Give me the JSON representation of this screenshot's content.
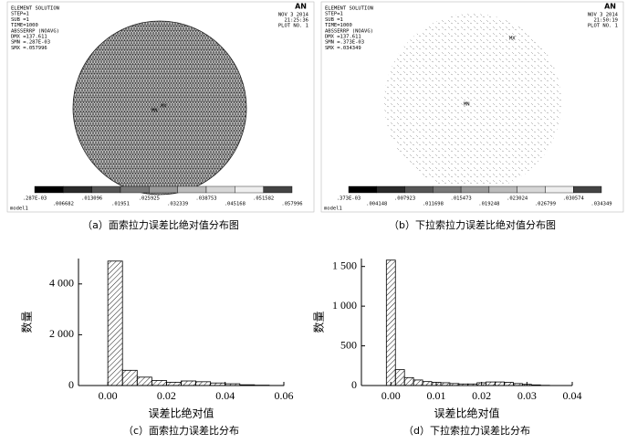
{
  "panels": [
    {
      "header": [
        "ELEMENT SOLUTION",
        "STEP=1",
        "SUB =1",
        "TIME=1000",
        "ABSSERRP (NOAVG)",
        "DMX =137.611",
        "SMN =.287E-03",
        "SMX =.057996"
      ],
      "logo": "AN",
      "stamp": [
        "NOV  3 2014",
        "21:25:36",
        "PLOT NO.   1"
      ],
      "markers": [
        "MN",
        "MX"
      ],
      "legend_labels": [
        ".287E-03",
        ".006682",
        ".013096",
        ".01951",
        ".025925",
        ".032339",
        ".038753",
        ".045168",
        ".051582",
        ".057996"
      ],
      "footer": "model1",
      "caption": "（a）面索拉力误差比绝对值分布图"
    },
    {
      "header": [
        "ELEMENT SOLUTION",
        "STEP=1",
        "SUB =1",
        "TIME=1000",
        "ABSSERRP (NOAVG)",
        "DMX =137.611",
        "SMN =.373E-03",
        "SMX =.034349"
      ],
      "logo": "AN",
      "stamp": [
        "NOV  3 2014",
        "21:50:19",
        "PLOT NO.   1"
      ],
      "markers": [
        "MN",
        "MX"
      ],
      "legend_labels": [
        ".373E-03",
        ".004148",
        ".007923",
        ".011698",
        ".015473",
        ".019248",
        ".023024",
        ".026799",
        ".030574",
        ".034349"
      ],
      "footer": "model1",
      "caption": "（b）下拉索拉力误差比绝对值分布图"
    }
  ],
  "chart_data": [
    {
      "type": "histogram",
      "color": "#000000",
      "bins": [
        0,
        0.005,
        0.01,
        0.015,
        0.02,
        0.025,
        0.03,
        0.035,
        0.04,
        0.045,
        0.05,
        0.055,
        0.06
      ],
      "values": [
        4900,
        600,
        330,
        200,
        130,
        180,
        150,
        100,
        70,
        30,
        15,
        5
      ],
      "xlim": [
        -0.01,
        0.06
      ],
      "xticks": [
        {
          "value": 0,
          "label": "0.00"
        },
        0.02,
        0.04,
        0.06
      ],
      "ylim": [
        0,
        5000
      ],
      "yticks": [
        0,
        {
          "value": 2000,
          "label": "2 000"
        },
        {
          "value": 4000,
          "label": "4 000"
        }
      ],
      "x_label": "误差比绝对值",
      "y_label": "数量",
      "caption": "（c）面索拉力误差比分布"
    },
    {
      "type": "histogram",
      "color": "#000000",
      "bins": [
        -0.001,
        0.001,
        0.003,
        0.005,
        0.007,
        0.009,
        0.011,
        0.013,
        0.015,
        0.017,
        0.019,
        0.021,
        0.023,
        0.025,
        0.027,
        0.029,
        0.031,
        0.033,
        0.035
      ],
      "values": [
        1580,
        200,
        100,
        70,
        50,
        40,
        35,
        25,
        20,
        20,
        35,
        45,
        45,
        40,
        25,
        15,
        8,
        3
      ],
      "xlim": [
        -0.0065,
        0.04
      ],
      "xticks": [
        {
          "value": 0,
          "label": "0.00"
        },
        0.01,
        0.02,
        0.03,
        0.04
      ],
      "ylim": [
        0,
        1600
      ],
      "yticks": [
        0,
        500,
        {
          "value": 1000,
          "label": "1 000"
        },
        {
          "value": 1500,
          "label": "1 500"
        }
      ],
      "x_label": "误差比绝对值",
      "y_label": "数量",
      "caption": "（d）下拉索拉力误差比分布"
    }
  ]
}
